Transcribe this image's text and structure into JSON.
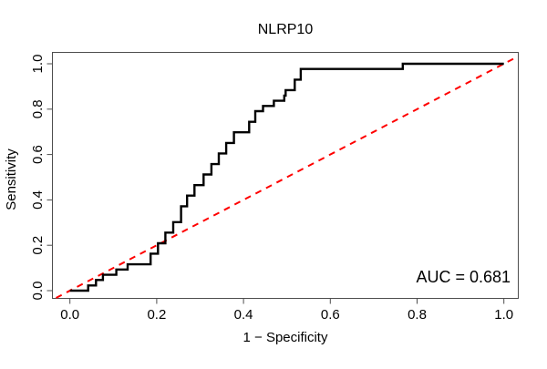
{
  "colors": {
    "curve": "#000000",
    "diagonal": "#ff0000",
    "box": "#4d4d4d",
    "background": "#ffffff",
    "text": "#000000"
  },
  "chart_data": {
    "type": "line",
    "subtype": "roc-step-curve",
    "title": "NLRP10",
    "xlabel": "1 − Specificity",
    "ylabel": "Sensitivity",
    "xlim": [
      0,
      1
    ],
    "ylim": [
      0,
      1
    ],
    "x_ticks": [
      "0.0",
      "0.2",
      "0.4",
      "0.6",
      "0.8",
      "1.0"
    ],
    "y_ticks": [
      "0.0",
      "0.2",
      "0.4",
      "0.6",
      "0.8",
      "1.0"
    ],
    "grid": false,
    "legend": "none",
    "annotation": {
      "auc_label": "AUC = 0.681",
      "auc_value": 0.681
    },
    "series": [
      {
        "name": "ROC curve NLRP10",
        "style": "step-solid",
        "color": "#000000",
        "points": [
          [
            0.0,
            0.0
          ],
          [
            0.042,
            0.0
          ],
          [
            0.042,
            0.023
          ],
          [
            0.06,
            0.023
          ],
          [
            0.06,
            0.047
          ],
          [
            0.076,
            0.047
          ],
          [
            0.076,
            0.07
          ],
          [
            0.107,
            0.07
          ],
          [
            0.107,
            0.093
          ],
          [
            0.133,
            0.093
          ],
          [
            0.133,
            0.116
          ],
          [
            0.186,
            0.116
          ],
          [
            0.186,
            0.163
          ],
          [
            0.203,
            0.163
          ],
          [
            0.203,
            0.209
          ],
          [
            0.22,
            0.209
          ],
          [
            0.22,
            0.256
          ],
          [
            0.238,
            0.256
          ],
          [
            0.238,
            0.302
          ],
          [
            0.256,
            0.302
          ],
          [
            0.256,
            0.372
          ],
          [
            0.27,
            0.372
          ],
          [
            0.27,
            0.419
          ],
          [
            0.287,
            0.419
          ],
          [
            0.287,
            0.465
          ],
          [
            0.308,
            0.465
          ],
          [
            0.308,
            0.512
          ],
          [
            0.326,
            0.512
          ],
          [
            0.326,
            0.558
          ],
          [
            0.343,
            0.558
          ],
          [
            0.343,
            0.605
          ],
          [
            0.36,
            0.605
          ],
          [
            0.36,
            0.651
          ],
          [
            0.378,
            0.651
          ],
          [
            0.378,
            0.698
          ],
          [
            0.413,
            0.698
          ],
          [
            0.413,
            0.744
          ],
          [
            0.427,
            0.744
          ],
          [
            0.427,
            0.791
          ],
          [
            0.445,
            0.791
          ],
          [
            0.445,
            0.814
          ],
          [
            0.47,
            0.814
          ],
          [
            0.47,
            0.837
          ],
          [
            0.494,
            0.837
          ],
          [
            0.494,
            0.86
          ],
          [
            0.497,
            0.86
          ],
          [
            0.497,
            0.884
          ],
          [
            0.518,
            0.884
          ],
          [
            0.518,
            0.93
          ],
          [
            0.532,
            0.93
          ],
          [
            0.532,
            0.977
          ],
          [
            0.767,
            0.977
          ],
          [
            0.767,
            1.0
          ],
          [
            1.0,
            1.0
          ]
        ]
      },
      {
        "name": "Chance diagonal",
        "style": "dashed",
        "color": "#ff0000",
        "points": [
          [
            0,
            0
          ],
          [
            1,
            1
          ]
        ]
      }
    ]
  }
}
